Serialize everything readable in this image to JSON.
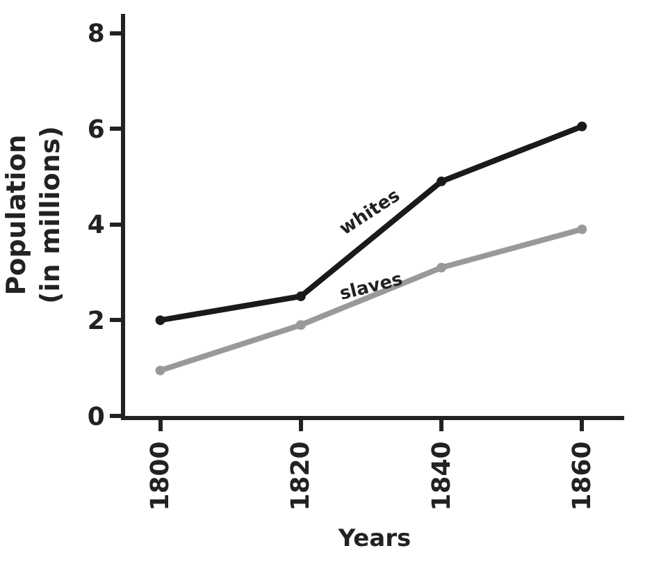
{
  "chart_data": {
    "type": "line",
    "xlabel": "Years",
    "ylabel": "Population\n(in millions)",
    "x": [
      1800,
      1820,
      1840,
      1860
    ],
    "series": [
      {
        "name": "whites",
        "color": "#1a1a1a",
        "values": [
          2.0,
          2.5,
          4.9,
          6.05
        ]
      },
      {
        "name": "slaves",
        "color": "#999999",
        "values": [
          0.95,
          1.9,
          3.1,
          3.9
        ]
      }
    ],
    "xlim": [
      1795,
      1866
    ],
    "xticks": [
      1800,
      1820,
      1840,
      1860
    ],
    "ylim": [
      0,
      8.4
    ],
    "yticks": [
      0,
      2,
      4,
      6,
      8
    ],
    "legend": false,
    "marker": "circle",
    "line_style": "solid"
  }
}
